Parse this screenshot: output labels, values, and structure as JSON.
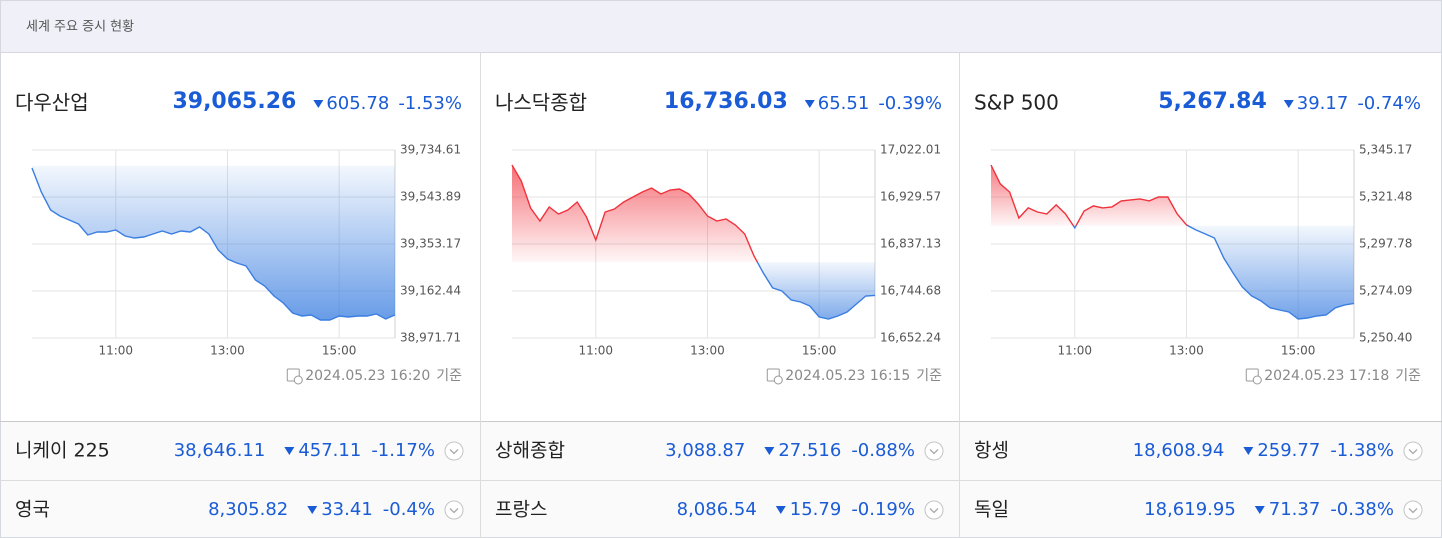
{
  "header": {
    "title": "세계 주요 증시 현황"
  },
  "chart_data": [
    {
      "type": "line",
      "title": "다우산업",
      "price": {
        "value": 39065.26,
        "label": "39,065.26"
      },
      "change": {
        "value": 605.78,
        "label": "605.78"
      },
      "direction": "down",
      "percent": {
        "value": -1.53,
        "label": "-1.53%"
      },
      "updated": "2024.05.23 16:20",
      "basis": "기준",
      "x": [
        "09:30",
        "09:40",
        "09:50",
        "10:00",
        "10:10",
        "10:20",
        "10:30",
        "10:40",
        "10:50",
        "11:00",
        "11:10",
        "11:20",
        "11:30",
        "11:40",
        "11:50",
        "12:00",
        "12:10",
        "12:20",
        "12:30",
        "12:40",
        "12:50",
        "13:00",
        "13:10",
        "13:20",
        "13:30",
        "13:40",
        "13:50",
        "14:00",
        "14:10",
        "14:20",
        "14:30",
        "14:40",
        "14:50",
        "15:00",
        "15:10",
        "15:20",
        "15:30",
        "15:40",
        "15:50",
        "16:00"
      ],
      "xlim": [
        "09:30",
        "16:00"
      ],
      "xticks": [
        "11:00",
        "13:00",
        "15:00"
      ],
      "ylim": [
        38971.71,
        39734.61
      ],
      "yticks": [
        {
          "value": 38971.71,
          "label": "38,971.71"
        },
        {
          "value": 39162.44,
          "label": "39,162.44"
        },
        {
          "value": 39353.17,
          "label": "39,353.17"
        },
        {
          "value": 39543.89,
          "label": "39,543.89"
        },
        {
          "value": 39734.61,
          "label": "39,734.61"
        }
      ],
      "grid": true,
      "up_color": "#f0323c",
      "down_color": "#3a7ee0",
      "series": [
        {
          "values": [
            39661.6,
            39564.2,
            39491.1,
            39466.8,
            39450.5,
            39434.3,
            39389.7,
            39401.8,
            39401.8,
            39410.0,
            39385.6,
            39377.5,
            39381.6,
            39393.7,
            39405.9,
            39393.7,
            39405.9,
            39401.8,
            39422.1,
            39393.7,
            39328.8,
            39292.3,
            39276.0,
            39263.9,
            39207.1,
            39182.7,
            39142.1,
            39113.7,
            39073.1,
            39061.0,
            39065.0,
            39044.7,
            39044.7,
            39061.0,
            39056.9,
            39061.0,
            39061.0,
            39069.1,
            39048.8,
            39065.26
          ]
        }
      ]
    },
    {
      "type": "line",
      "title": "나스닥종합",
      "price": {
        "value": 16736.03,
        "label": "16,736.03"
      },
      "change": {
        "value": 65.51,
        "label": "65.51"
      },
      "direction": "down",
      "percent": {
        "value": -0.39,
        "label": "-0.39%"
      },
      "updated": "2024.05.23 16:15",
      "basis": "기준",
      "x": [
        "09:30",
        "09:40",
        "09:50",
        "10:00",
        "10:10",
        "10:20",
        "10:30",
        "10:40",
        "10:50",
        "11:00",
        "11:10",
        "11:20",
        "11:30",
        "11:40",
        "11:50",
        "12:00",
        "12:10",
        "12:20",
        "12:30",
        "12:40",
        "12:50",
        "13:00",
        "13:10",
        "13:20",
        "13:30",
        "13:40",
        "13:50",
        "14:00",
        "14:10",
        "14:20",
        "14:30",
        "14:40",
        "14:50",
        "15:00",
        "15:10",
        "15:20",
        "15:30",
        "15:40",
        "15:50",
        "16:00"
      ],
      "xlim": [
        "09:30",
        "16:00"
      ],
      "xticks": [
        "11:00",
        "13:00",
        "15:00"
      ],
      "ylim": [
        16652.24,
        17022.01
      ],
      "yticks": [
        {
          "value": 16652.24,
          "label": "16,652.24"
        },
        {
          "value": 16744.68,
          "label": "16,744.68"
        },
        {
          "value": 16837.13,
          "label": "16,837.13"
        },
        {
          "value": 16929.57,
          "label": "16,929.57"
        },
        {
          "value": 17022.01,
          "label": "17,022.01"
        }
      ],
      "grid": true,
      "up_color": "#f0323c",
      "down_color": "#3a7ee0",
      "series": [
        {
          "values": [
            16992.5,
            16961.0,
            16907.9,
            16882.3,
            16909.9,
            16896.1,
            16904.0,
            16919.7,
            16890.2,
            16845.0,
            16900.0,
            16905.9,
            16919.7,
            16929.6,
            16939.4,
            16947.3,
            16935.5,
            16943.3,
            16945.3,
            16935.5,
            16915.8,
            16892.2,
            16882.3,
            16886.3,
            16874.5,
            16856.8,
            16813.5,
            16780.1,
            16750.8,
            16744.7,
            16727.0,
            16723.0,
            16715.1,
            16693.5,
            16689.6,
            16695.5,
            16703.3,
            16719.1,
            16734.8,
            16736.03
          ]
        }
      ]
    },
    {
      "type": "line",
      "title": "S&P 500",
      "price": {
        "value": 5267.84,
        "label": "5,267.84"
      },
      "change": {
        "value": 39.17,
        "label": "39.17"
      },
      "direction": "down",
      "percent": {
        "value": -0.74,
        "label": "-0.74%"
      },
      "updated": "2024.05.23 17:18",
      "basis": "기준",
      "x": [
        "09:30",
        "09:40",
        "09:50",
        "10:00",
        "10:10",
        "10:20",
        "10:30",
        "10:40",
        "10:50",
        "11:00",
        "11:10",
        "11:20",
        "11:30",
        "11:40",
        "11:50",
        "12:00",
        "12:10",
        "12:20",
        "12:30",
        "12:40",
        "12:50",
        "13:00",
        "13:10",
        "13:20",
        "13:30",
        "13:40",
        "13:50",
        "14:00",
        "14:10",
        "14:20",
        "14:30",
        "14:40",
        "14:50",
        "15:00",
        "15:10",
        "15:20",
        "15:30",
        "15:40",
        "15:50",
        "16:00"
      ],
      "xlim": [
        "09:30",
        "16:00"
      ],
      "xticks": [
        "11:00",
        "13:00",
        "15:00"
      ],
      "ylim": [
        5250.4,
        5345.17
      ],
      "yticks": [
        {
          "value": 5250.4,
          "label": "5,250.40"
        },
        {
          "value": 5274.09,
          "label": "5,274.09"
        },
        {
          "value": 5297.78,
          "label": "5,297.78"
        },
        {
          "value": 5321.48,
          "label": "5,321.48"
        },
        {
          "value": 5345.17,
          "label": "5,345.17"
        }
      ],
      "grid": true,
      "up_color": "#f0323c",
      "down_color": "#3a7ee0",
      "series": [
        {
          "values": [
            5337.6,
            5328.1,
            5324.0,
            5310.9,
            5316.0,
            5313.9,
            5312.9,
            5317.5,
            5312.9,
            5305.9,
            5314.4,
            5317.0,
            5316.0,
            5316.5,
            5319.5,
            5320.0,
            5320.5,
            5319.5,
            5321.5,
            5321.5,
            5312.9,
            5307.4,
            5304.9,
            5302.9,
            5300.8,
            5290.8,
            5283.2,
            5276.1,
            5271.6,
            5269.1,
            5265.6,
            5264.5,
            5263.5,
            5260.0,
            5260.5,
            5261.5,
            5262.0,
            5265.6,
            5267.1,
            5267.84
          ]
        }
      ]
    }
  ],
  "markets": [
    [
      {
        "name": "니케이 225",
        "value": "38,646.11",
        "change": "457.11",
        "percent": "-1.17%"
      },
      {
        "name": "상해종합",
        "value": "3,088.87",
        "change": "27.516",
        "percent": "-0.88%"
      },
      {
        "name": "항셍",
        "value": "18,608.94",
        "change": "259.77",
        "percent": "-1.38%"
      }
    ],
    [
      {
        "name": "영국",
        "value": "8,305.82",
        "change": "33.41",
        "percent": "-0.4%"
      },
      {
        "name": "프랑스",
        "value": "8,086.54",
        "change": "15.79",
        "percent": "-0.19%"
      },
      {
        "name": "독일",
        "value": "18,619.95",
        "change": "71.37",
        "percent": "-0.38%"
      }
    ]
  ]
}
